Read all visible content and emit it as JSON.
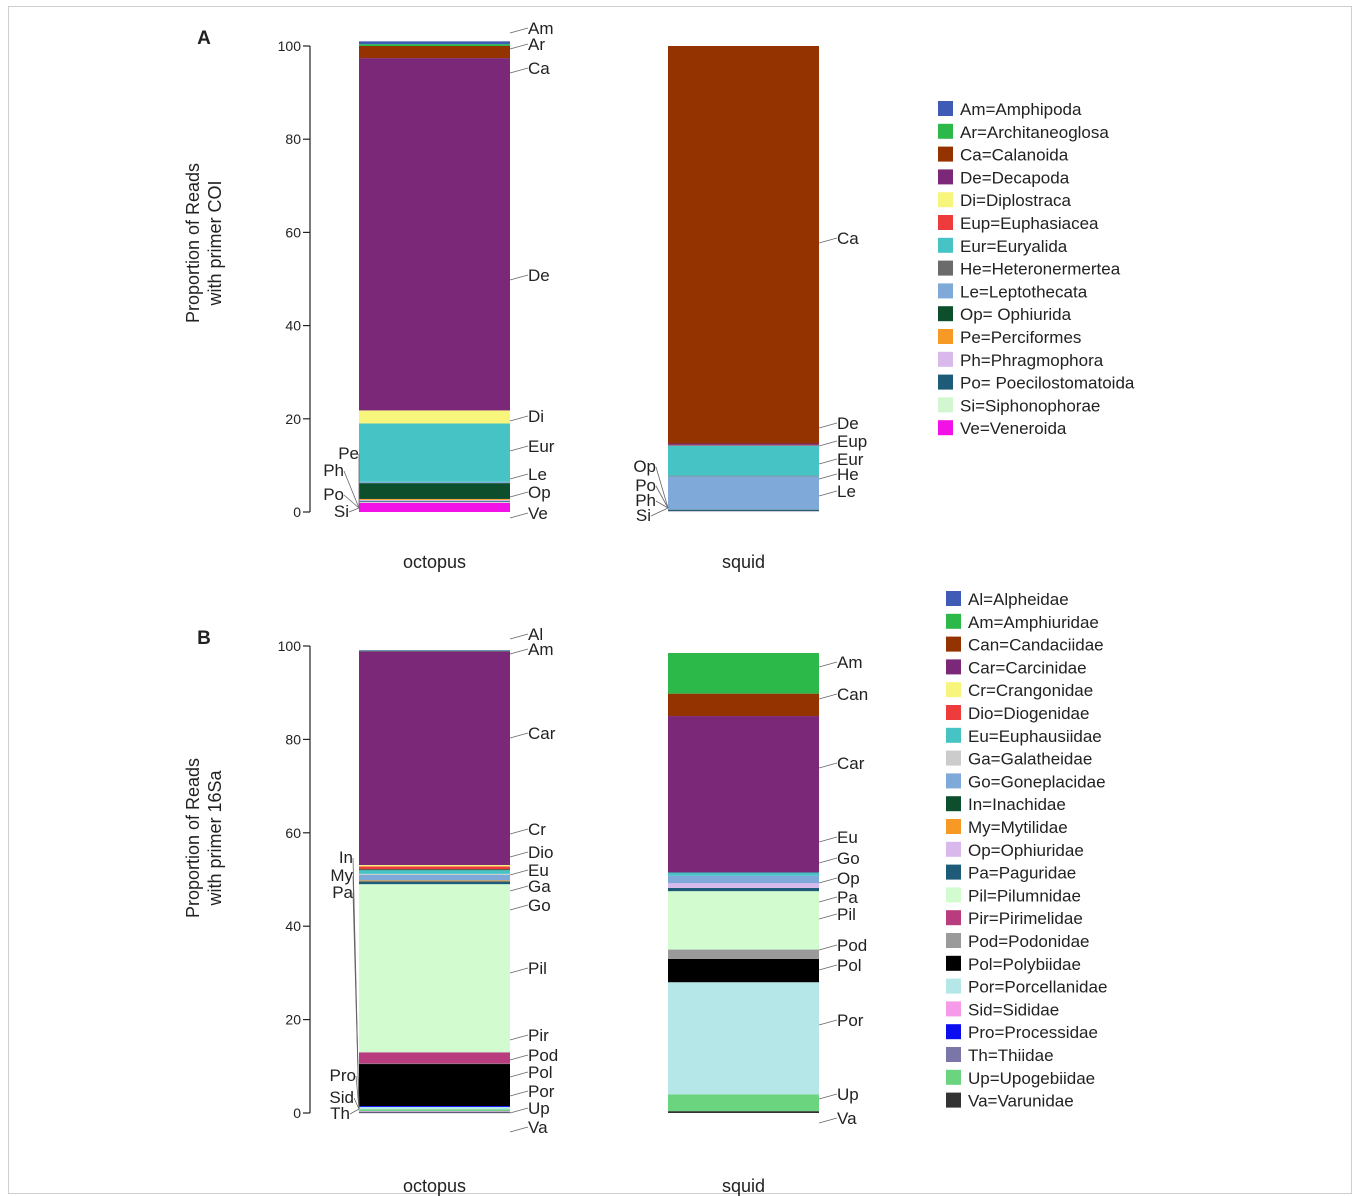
{
  "chart_data": [
    {
      "type": "bar",
      "stacked": true,
      "panel_label": "A",
      "ylabel": "Proportion of Reads with primer COI",
      "ylabel_lines": [
        "Proportion of Reads",
        "with primer COI"
      ],
      "ylim": [
        0,
        100
      ],
      "yticks": [
        0,
        20,
        40,
        60,
        80,
        100
      ],
      "categories": [
        "octopus",
        "squid"
      ],
      "legend": [
        {
          "code": "Am",
          "label": "Am=Amphipoda",
          "color": "#3f5bb5"
        },
        {
          "code": "Ar",
          "label": "Ar=Architaneoglosa",
          "color": "#2db84a"
        },
        {
          "code": "Ca",
          "label": "Ca=Calanoida",
          "color": "#943300"
        },
        {
          "code": "De",
          "label": "De=Decapoda",
          "color": "#7b2878"
        },
        {
          "code": "Di",
          "label": "Di=Diplostraca",
          "color": "#f8f57c"
        },
        {
          "code": "Eup",
          "label": "Eup=Euphasiacea",
          "color": "#ee3b3b"
        },
        {
          "code": "Eur",
          "label": "Eur=Euryalida",
          "color": "#46c3c4"
        },
        {
          "code": "He",
          "label": "He=Heteronermertea",
          "color": "#6b6b6b"
        },
        {
          "code": "Le",
          "label": "Le=Leptothecata",
          "color": "#7ea9d8"
        },
        {
          "code": "Op",
          "label": "Op= Ophiurida",
          "color": "#0d4f2c"
        },
        {
          "code": "Pe",
          "label": "Pe=Perciformes",
          "color": "#f79a25"
        },
        {
          "code": "Ph",
          "label": "Ph=Phragmophora",
          "color": "#d9b8ec"
        },
        {
          "code": "Po",
          "label": "Po= Poecilostomatoida",
          "color": "#1e5b78"
        },
        {
          "code": "Si",
          "label": "Si=Siphonophorae",
          "color": "#d2f7d0"
        },
        {
          "code": "Ve",
          "label": "Ve=Veneroida",
          "color": "#f211e6"
        }
      ],
      "stacks": {
        "octopus": [
          {
            "code": "Ve",
            "value": 2.0
          },
          {
            "code": "Si",
            "value": 0.2
          },
          {
            "code": "Po",
            "value": 0.2
          },
          {
            "code": "Ph",
            "value": 0.2
          },
          {
            "code": "Pe",
            "value": 0.2
          },
          {
            "code": "Op",
            "value": 3.4
          },
          {
            "code": "Le",
            "value": 0.3
          },
          {
            "code": "Eur",
            "value": 12.5
          },
          {
            "code": "Di",
            "value": 2.8
          },
          {
            "code": "De",
            "value": 75.6
          },
          {
            "code": "Ca",
            "value": 2.6
          },
          {
            "code": "Ar",
            "value": 0.4
          },
          {
            "code": "Am",
            "value": 0.6
          }
        ],
        "squid": [
          {
            "code": "Si",
            "value": 0.1
          },
          {
            "code": "Ph",
            "value": 0.1
          },
          {
            "code": "Po",
            "value": 0.2
          },
          {
            "code": "Op",
            "value": 0.1
          },
          {
            "code": "Le",
            "value": 7.2
          },
          {
            "code": "He",
            "value": 0.1
          },
          {
            "code": "Eur",
            "value": 6.5
          },
          {
            "code": "Eup",
            "value": 0.1
          },
          {
            "code": "De",
            "value": 0.3
          },
          {
            "code": "Ca",
            "value": 85.3
          }
        ]
      }
    },
    {
      "type": "bar",
      "stacked": true,
      "panel_label": "B",
      "ylabel": "Proportion of Reads with primer 16Sa",
      "ylabel_lines": [
        "Proportion of Reads",
        "with primer 16Sa"
      ],
      "ylim": [
        0,
        100
      ],
      "yticks": [
        0,
        20,
        40,
        60,
        80,
        100
      ],
      "categories": [
        "octopus",
        "squid"
      ],
      "legend": [
        {
          "code": "Al",
          "label": "Al=Alpheidae",
          "color": "#3f5bb5"
        },
        {
          "code": "Am",
          "label": "Am=Amphiuridae",
          "color": "#2db84a"
        },
        {
          "code": "Can",
          "label": "Can=Candaciidae",
          "color": "#943300"
        },
        {
          "code": "Car",
          "label": "Car=Carcinidae",
          "color": "#7b2878"
        },
        {
          "code": "Cr",
          "label": "Cr=Crangonidae",
          "color": "#f8f57c"
        },
        {
          "code": "Dio",
          "label": "Dio=Diogenidae",
          "color": "#ee3b3b"
        },
        {
          "code": "Eu",
          "label": "Eu=Euphausiidae",
          "color": "#46c3c4"
        },
        {
          "code": "Ga",
          "label": "Ga=Galatheidae",
          "color": "#cccccc"
        },
        {
          "code": "Go",
          "label": "Go=Goneplacidae",
          "color": "#7ea9d8"
        },
        {
          "code": "In",
          "label": "In=Inachidae",
          "color": "#0d4f2c"
        },
        {
          "code": "My",
          "label": "My=Mytilidae",
          "color": "#f79a25"
        },
        {
          "code": "Op",
          "label": "Op=Ophiuridae",
          "color": "#d9b8ec"
        },
        {
          "code": "Pa",
          "label": "Pa=Paguridae",
          "color": "#1e5b78"
        },
        {
          "code": "Pil",
          "label": "Pil=Pilumnidae",
          "color": "#d2fcd0"
        },
        {
          "code": "Pir",
          "label": "Pir=Pirimelidae",
          "color": "#b83c7e"
        },
        {
          "code": "Pod",
          "label": "Pod=Podonidae",
          "color": "#9a9a9a"
        },
        {
          "code": "Pol",
          "label": "Pol=Polybiidae",
          "color": "#000000"
        },
        {
          "code": "Por",
          "label": "Por=Porcellanidae",
          "color": "#b5e6e8"
        },
        {
          "code": "Sid",
          "label": "Sid=Sididae",
          "color": "#f59bea"
        },
        {
          "code": "Pro",
          "label": "Pro=Processidae",
          "color": "#0a0df0"
        },
        {
          "code": "Th",
          "label": "Th=Thiidae",
          "color": "#7a77a8"
        },
        {
          "code": "Up",
          "label": "Up=Upogebiidae",
          "color": "#6ad47e"
        },
        {
          "code": "Va",
          "label": "Va=Varunidae",
          "color": "#333333"
        }
      ],
      "stacks": {
        "octopus": [
          {
            "code": "Va",
            "value": 0.1
          },
          {
            "code": "Th",
            "value": 0.2
          },
          {
            "code": "Sid",
            "value": 0.1
          },
          {
            "code": "Up",
            "value": 0.4
          },
          {
            "code": "Por",
            "value": 0.5
          },
          {
            "code": "Pro",
            "value": 0.2
          },
          {
            "code": "Pol",
            "value": 9.0
          },
          {
            "code": "Pod",
            "value": 0.1
          },
          {
            "code": "Pir",
            "value": 2.4
          },
          {
            "code": "Pil",
            "value": 36.0
          },
          {
            "code": "Pa",
            "value": 0.6
          },
          {
            "code": "My",
            "value": 0.2
          },
          {
            "code": "Go",
            "value": 1.2
          },
          {
            "code": "Ga",
            "value": 0.2
          },
          {
            "code": "Eu",
            "value": 0.8
          },
          {
            "code": "In",
            "value": 0.2
          },
          {
            "code": "Dio",
            "value": 0.6
          },
          {
            "code": "Cr",
            "value": 0.3
          },
          {
            "code": "Car",
            "value": 45.8
          },
          {
            "code": "Am",
            "value": 0.1
          },
          {
            "code": "Al",
            "value": 0.1
          }
        ],
        "squid": [
          {
            "code": "Va",
            "value": 0.4
          },
          {
            "code": "Up",
            "value": 3.6
          },
          {
            "code": "Por",
            "value": 24.0
          },
          {
            "code": "Pol",
            "value": 5.0
          },
          {
            "code": "Pod",
            "value": 2.0
          },
          {
            "code": "Pil",
            "value": 12.5
          },
          {
            "code": "Pa",
            "value": 0.7
          },
          {
            "code": "Op",
            "value": 1.0
          },
          {
            "code": "Go",
            "value": 1.6
          },
          {
            "code": "Eu",
            "value": 0.7
          },
          {
            "code": "Car",
            "value": 33.5
          },
          {
            "code": "Can",
            "value": 4.8
          },
          {
            "code": "Am",
            "value": 8.7
          }
        ]
      }
    }
  ],
  "labels": {
    "a_octopus_right": [
      "Am",
      "Ar",
      "Ca",
      "De",
      "Di",
      "Eur",
      "Le",
      "Op",
      "Ve"
    ],
    "a_octopus_left": [
      "Pe",
      "Ph",
      "Po",
      "Si"
    ],
    "a_squid_right": [
      "Ca",
      "De",
      "Eup",
      "Eur",
      "He",
      "Le"
    ],
    "a_squid_left": [
      "Op",
      "Po",
      "Ph",
      "Si"
    ],
    "b_octopus_right": [
      "Al",
      "Am",
      "Car",
      "Cr",
      "Dio",
      "Eu",
      "Ga",
      "Go",
      "Pil",
      "Pir",
      "Pod",
      "Pol",
      "Por",
      "Up",
      "Va"
    ],
    "b_octopus_left": [
      "In",
      "My",
      "Pa",
      "Pro",
      "Sid",
      "Th"
    ],
    "b_squid_right": [
      "Am",
      "Can",
      "Car",
      "Eu",
      "Go",
      "Op",
      "Pa",
      "Pil",
      "Pod",
      "Pol",
      "Por",
      "Up",
      "Va"
    ]
  }
}
